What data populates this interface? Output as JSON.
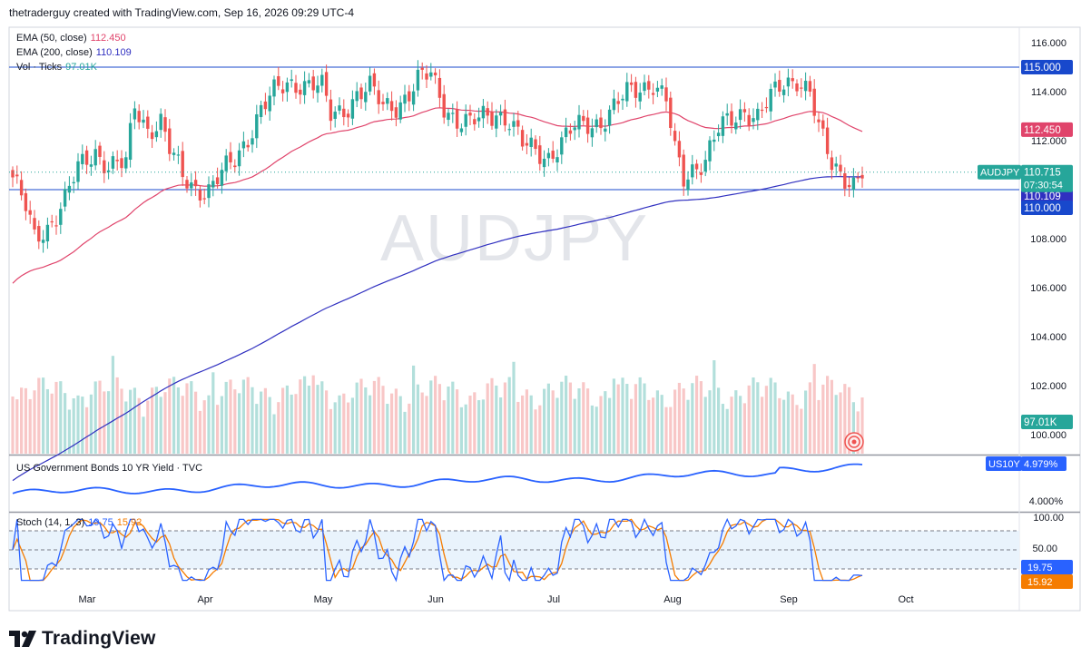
{
  "header": {
    "attribution": "thetraderguy created with TradingView.com, Sep 16, 2026 09:29 UTC-4"
  },
  "brand": {
    "name": "TradingView"
  },
  "colors": {
    "up": "#26a69a",
    "down": "#ef5350",
    "ema50": "#e0446b",
    "ema200": "#3030c0",
    "us10y": "#2962ff",
    "stochK": "#2962ff",
    "stochD": "#f57c00",
    "vol_up": "#b2dfdb",
    "vol_down": "#f8c7c7"
  },
  "legend": {
    "ema50_label": "EMA (50, close)",
    "ema50_value": "112.450",
    "ema200_label": "EMA (200, close)",
    "ema200_value": "110.109",
    "vol_label": "Vol · Ticks",
    "vol_value": "97.01K",
    "us10y_label": "US Government Bonds 10 YR Yield · TVC",
    "stoch_label": "Stoch (14, 1, 3)",
    "stoch_k": "19.75",
    "stoch_d": "15.92"
  },
  "chart_data": [
    {
      "type": "candlestick",
      "symbol": "AUDJPY",
      "watermark": "AUDJPY",
      "y_range": [
        99.6,
        116.9
      ],
      "y_ticks": [
        "116.000",
        "114.000",
        "112.000",
        "110.000",
        "108.000",
        "106.000",
        "104.000",
        "102.000",
        "100.000"
      ],
      "x_months": [
        "Mar",
        "Apr",
        "May",
        "Jun",
        "Jul",
        "Aug",
        "Sep",
        "Oct"
      ],
      "close_anchors": [
        [
          0,
          110.5
        ],
        [
          3,
          109.2
        ],
        [
          5,
          108.0
        ],
        [
          8,
          108.5
        ],
        [
          12,
          109.6
        ],
        [
          15,
          110.8
        ],
        [
          19,
          111.6
        ],
        [
          22,
          111.0
        ],
        [
          26,
          111.0
        ],
        [
          28,
          113.4
        ],
        [
          31,
          112.5
        ],
        [
          34,
          112.8
        ],
        [
          36,
          111.6
        ],
        [
          39,
          110.5
        ],
        [
          42,
          110.1
        ],
        [
          45,
          110.0
        ],
        [
          48,
          110.6
        ],
        [
          51,
          111.2
        ],
        [
          54,
          112.2
        ],
        [
          57,
          113.3
        ],
        [
          60,
          113.9
        ],
        [
          63,
          114.3
        ],
        [
          66,
          114.4
        ],
        [
          69,
          114.3
        ],
        [
          71,
          114.1
        ],
        [
          73,
          113.0
        ],
        [
          76,
          113.3
        ],
        [
          79,
          113.9
        ],
        [
          82,
          114.1
        ],
        [
          85,
          113.4
        ],
        [
          88,
          113.5
        ],
        [
          91,
          113.9
        ],
        [
          93,
          114.4
        ],
        [
          96,
          114.7
        ],
        [
          99,
          113.5
        ],
        [
          102,
          112.8
        ],
        [
          105,
          112.6
        ],
        [
          108,
          113.0
        ],
        [
          111,
          113.2
        ],
        [
          114,
          112.8
        ],
        [
          117,
          111.8
        ],
        [
          120,
          111.6
        ],
        [
          123,
          111.4
        ],
        [
          126,
          111.9
        ],
        [
          129,
          112.5
        ],
        [
          132,
          112.7
        ],
        [
          135,
          112.8
        ],
        [
          138,
          113.3
        ],
        [
          141,
          113.9
        ],
        [
          144,
          114.2
        ],
        [
          147,
          114.4
        ],
        [
          150,
          113.6
        ],
        [
          152,
          111.5
        ],
        [
          154,
          110.4
        ],
        [
          156,
          110.9
        ],
        [
          159,
          111.3
        ],
        [
          162,
          112.4
        ],
        [
          165,
          112.8
        ],
        [
          168,
          113.3
        ],
        [
          171,
          113.0
        ],
        [
          174,
          113.7
        ],
        [
          177,
          114.3
        ],
        [
          180,
          114.6
        ],
        [
          183,
          114.0
        ],
        [
          185,
          112.4
        ],
        [
          188,
          111.0
        ],
        [
          191,
          110.6
        ],
        [
          193,
          110.3
        ],
        [
          195,
          110.7
        ]
      ],
      "last_value": "110.715",
      "countdown": "07:30:54",
      "horizontal_levels": [
        "115.000",
        "110.000"
      ],
      "ema50_value": "112.450",
      "ema200_value": "110.109"
    },
    {
      "type": "line",
      "title": "US Government Bonds 10 YR Yield · TVC",
      "symbol": "US10Y",
      "y_ticks": [
        "4.000%"
      ],
      "last_value": "4.979%"
    },
    {
      "type": "line",
      "title": "Stoch (14, 1, 3)",
      "y_ticks": [
        "100.00",
        "50.00"
      ],
      "levels": [
        80,
        50,
        20
      ],
      "series": [
        {
          "name": "%K",
          "last": "19.75"
        },
        {
          "name": "%D",
          "last": "15.92"
        }
      ]
    }
  ]
}
